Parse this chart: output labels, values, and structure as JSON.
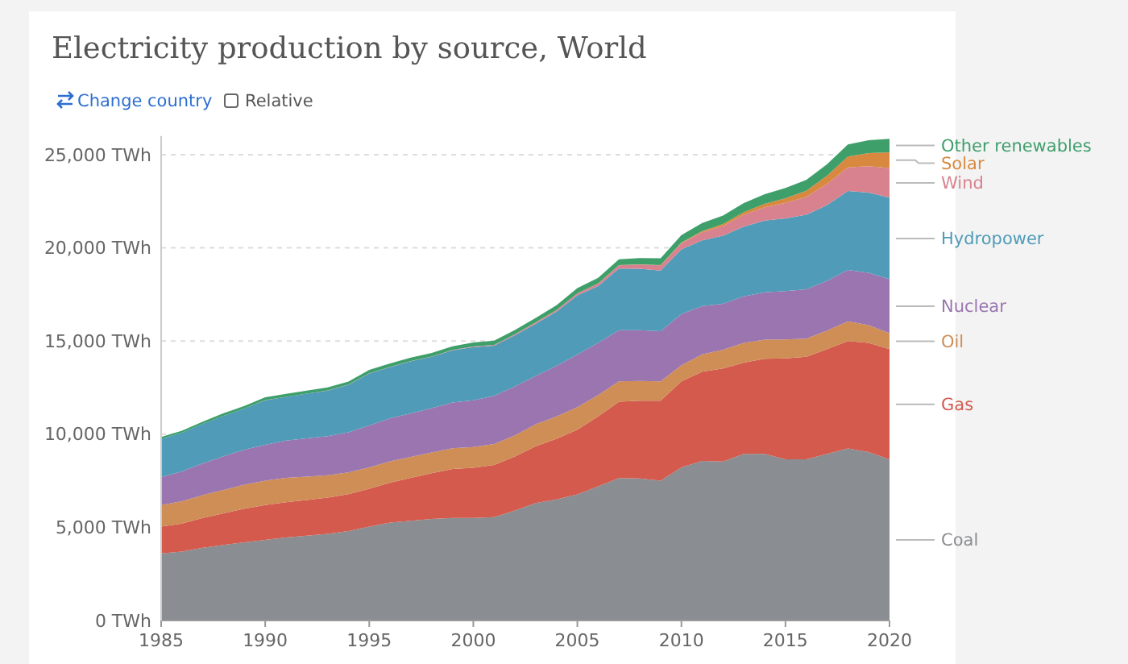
{
  "chart_data": {
    "type": "area",
    "stacked": true,
    "title": "Electricity production by source, World",
    "annotations": [
      "Change country",
      "Relative"
    ],
    "x": [
      1985,
      1986,
      1987,
      1988,
      1989,
      1990,
      1991,
      1992,
      1993,
      1994,
      1995,
      1996,
      1997,
      1998,
      1999,
      2000,
      2001,
      2002,
      2003,
      2004,
      2005,
      2006,
      2007,
      2008,
      2009,
      2010,
      2011,
      2012,
      2013,
      2014,
      2015,
      2016,
      2017,
      2018,
      2019,
      2020
    ],
    "xlim": [
      1985,
      2020
    ],
    "xticks": [
      1985,
      1990,
      1995,
      2000,
      2005,
      2010,
      2015,
      2020
    ],
    "ylim": [
      0,
      26000
    ],
    "yticks": [
      {
        "value": 0,
        "label": "0 TWh"
      },
      {
        "value": 5000,
        "label": "5,000 TWh"
      },
      {
        "value": 10000,
        "label": "10,000 TWh"
      },
      {
        "value": 15000,
        "label": "15,000 TWh"
      },
      {
        "value": 20000,
        "label": "20,000 TWh"
      },
      {
        "value": 25000,
        "label": "25,000 TWh"
      }
    ],
    "grid": "y",
    "legend": "right",
    "series": [
      {
        "name": "Coal",
        "color": "#8a8d91",
        "values": [
          3600,
          3700,
          3900,
          4050,
          4200,
          4320,
          4450,
          4550,
          4650,
          4800,
          5040,
          5250,
          5350,
          5450,
          5500,
          5500,
          5550,
          5900,
          6300,
          6500,
          6770,
          7200,
          7640,
          7620,
          7500,
          8220,
          8560,
          8530,
          8940,
          8940,
          8650,
          8650,
          8940,
          9230,
          9040,
          8650
        ]
      },
      {
        "name": "Gas",
        "color": "#d35a4d",
        "values": [
          1440,
          1500,
          1600,
          1700,
          1800,
          1880,
          1900,
          1920,
          1940,
          1980,
          2030,
          2150,
          2300,
          2450,
          2630,
          2700,
          2800,
          2900,
          3050,
          3250,
          3470,
          3750,
          4100,
          4180,
          4300,
          4610,
          4790,
          5000,
          4900,
          5100,
          5420,
          5500,
          5620,
          5770,
          5860,
          5910
        ]
      },
      {
        "name": "Oil",
        "color": "#cf8e55",
        "values": [
          1160,
          1200,
          1230,
          1260,
          1290,
          1300,
          1300,
          1250,
          1200,
          1170,
          1150,
          1140,
          1130,
          1120,
          1115,
          1110,
          1120,
          1140,
          1180,
          1200,
          1210,
          1150,
          1090,
          1060,
          1030,
          870,
          930,
          1000,
          1060,
          1030,
          1010,
          980,
          1000,
          1060,
          950,
          860
        ]
      },
      {
        "name": "Nuclear",
        "color": "#9a75b0",
        "values": [
          1500,
          1600,
          1700,
          1800,
          1880,
          1930,
          2000,
          2050,
          2100,
          2150,
          2250,
          2310,
          2330,
          2380,
          2450,
          2510,
          2580,
          2620,
          2600,
          2720,
          2820,
          2800,
          2750,
          2720,
          2700,
          2750,
          2600,
          2470,
          2500,
          2540,
          2600,
          2640,
          2670,
          2750,
          2810,
          2890
        ]
      },
      {
        "name": "Hydropower",
        "color": "#509bb8",
        "values": [
          2050,
          2080,
          2120,
          2180,
          2200,
          2390,
          2350,
          2400,
          2450,
          2550,
          2790,
          2750,
          2800,
          2750,
          2800,
          2850,
          2700,
          2750,
          2800,
          2900,
          3180,
          3050,
          3310,
          3300,
          3250,
          3460,
          3520,
          3650,
          3740,
          3850,
          3900,
          4000,
          4060,
          4240,
          4300,
          4380
        ]
      },
      {
        "name": "Wind",
        "color": "#d8828f",
        "values": [
          0,
          0,
          0,
          0,
          0,
          4,
          5,
          6,
          6,
          7,
          8,
          10,
          12,
          16,
          22,
          31,
          38,
          52,
          63,
          85,
          104,
          132,
          170,
          220,
          277,
          342,
          437,
          523,
          640,
          710,
          830,
          960,
          1140,
          1270,
          1420,
          1590
        ]
      },
      {
        "name": "Solar",
        "color": "#d8893f",
        "values": [
          0,
          0,
          0,
          0,
          0,
          0,
          0,
          0,
          0,
          0,
          0,
          0,
          0,
          1,
          1,
          1,
          2,
          2,
          3,
          3,
          4,
          6,
          8,
          12,
          20,
          32,
          64,
          100,
          137,
          190,
          256,
          330,
          445,
          580,
          700,
          850
        ]
      },
      {
        "name": "Other renewables",
        "color": "#3f9f6b",
        "values": [
          100,
          110,
          120,
          130,
          140,
          150,
          155,
          160,
          165,
          170,
          180,
          185,
          190,
          195,
          200,
          220,
          225,
          230,
          240,
          260,
          280,
          300,
          320,
          340,
          360,
          400,
          430,
          460,
          490,
          520,
          550,
          580,
          610,
          650,
          690,
          720
        ]
      }
    ]
  }
}
